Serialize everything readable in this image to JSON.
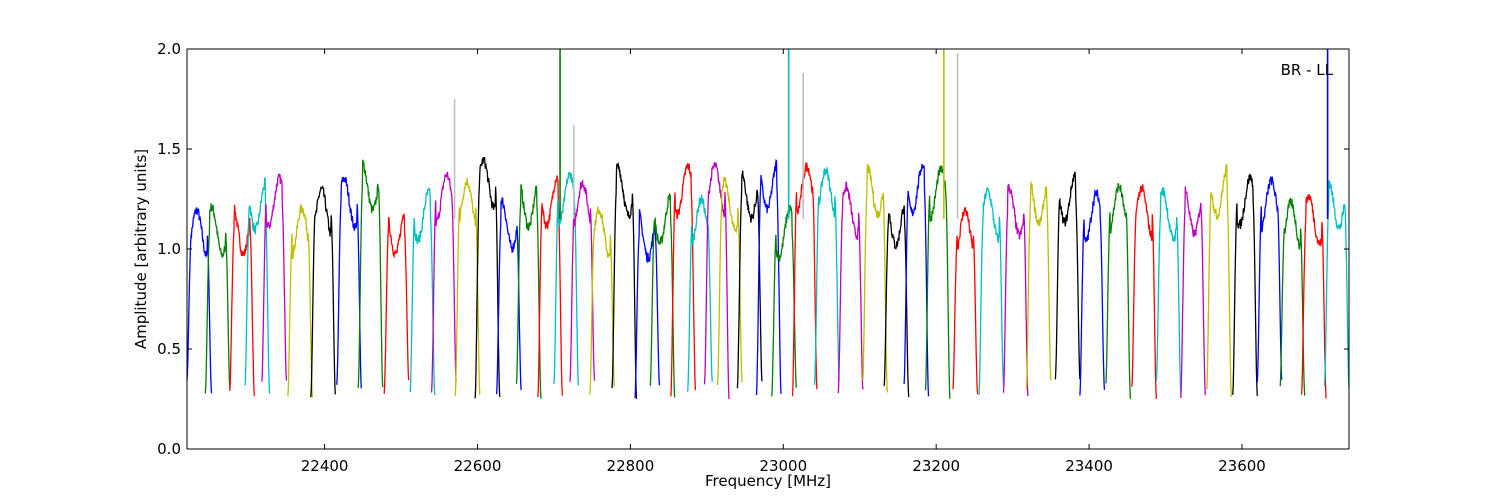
{
  "chart_data": {
    "type": "line",
    "title": "",
    "xlabel": "Frequency [MHz]",
    "ylabel": "Amplitude [arbitrary units]",
    "annotation": "BR - LL",
    "xlim": [
      22220,
      23740
    ],
    "ylim": [
      0.0,
      2.0
    ],
    "xticks": [
      22400,
      22600,
      22800,
      23000,
      23200,
      23400,
      23600
    ],
    "yticks": [
      0.0,
      0.5,
      1.0,
      1.5,
      2.0
    ],
    "xtick_labels": [
      "22400",
      "22600",
      "22800",
      "23000",
      "23200",
      "23400",
      "23600"
    ],
    "ytick_labels": [
      "0.0",
      "0.5",
      "1.0",
      "1.5",
      "2.0"
    ],
    "grid": false,
    "legend": "none",
    "color_cycle": [
      "#0000ff",
      "#008000",
      "#ff0000",
      "#00bfbf",
      "#bf00bf",
      "#bfbf00",
      "#000000"
    ],
    "spike_color": "#c0c0c0",
    "segment_width_mhz": 32,
    "segment_starts_mhz": [
      22220,
      22244,
      22276,
      22296,
      22318,
      22352,
      22382,
      22416,
      22444,
      22478,
      22512,
      22540,
      22571,
      22597,
      22625,
      22651,
      22679,
      22700,
      22721,
      22747,
      22776,
      22806,
      22826,
      22853,
      22875,
      22897,
      22914,
      22940,
      22965,
      22985,
      23012,
      23041,
      23072,
      23104,
      23132,
      23158,
      23186,
      23222,
      23256,
      23288,
      23318,
      23356,
      23388,
      23422,
      23456,
      23488,
      23520,
      23554,
      23588,
      23620,
      23650,
      23678,
      23708
    ],
    "typical_level": 1.2,
    "dip_minimum": 0.25,
    "spikes": [
      {
        "x": 22570,
        "y": 1.75,
        "color": "#c0c0c0"
      },
      {
        "x": 22708,
        "y": 2.0,
        "color": "#008000"
      },
      {
        "x": 22726,
        "y": 1.62,
        "color": "#c0c0c0"
      },
      {
        "x": 23007,
        "y": 2.0,
        "color": "#00bfbf"
      },
      {
        "x": 23026,
        "y": 1.88,
        "color": "#c0c0c0"
      },
      {
        "x": 23210,
        "y": 2.0,
        "color": "#bfbf00"
      },
      {
        "x": 23228,
        "y": 1.98,
        "color": "#c0c0c0"
      },
      {
        "x": 23712,
        "y": 2.0,
        "color": "#0000ff"
      }
    ]
  }
}
